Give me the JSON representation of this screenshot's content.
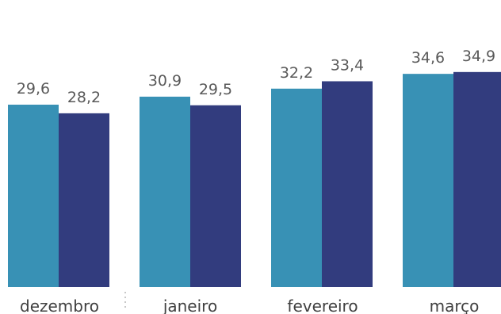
{
  "chart_data": {
    "type": "bar",
    "categories": [
      "dezembro",
      "janeiro",
      "fevereiro",
      "março"
    ],
    "series": [
      {
        "values": [
          29.6,
          30.9,
          32.2,
          34.6
        ],
        "color": "#3891b5"
      },
      {
        "values": [
          28.2,
          29.5,
          33.4,
          34.9
        ],
        "color": "#323c7e"
      }
    ],
    "value_labels": [
      [
        "29,6",
        "30,9",
        "32,2",
        "34,6"
      ],
      [
        "28,2",
        "29,5",
        "33,4",
        "34,9"
      ]
    ],
    "ylim": [
      0,
      40
    ],
    "grid": false,
    "legend": "none"
  }
}
